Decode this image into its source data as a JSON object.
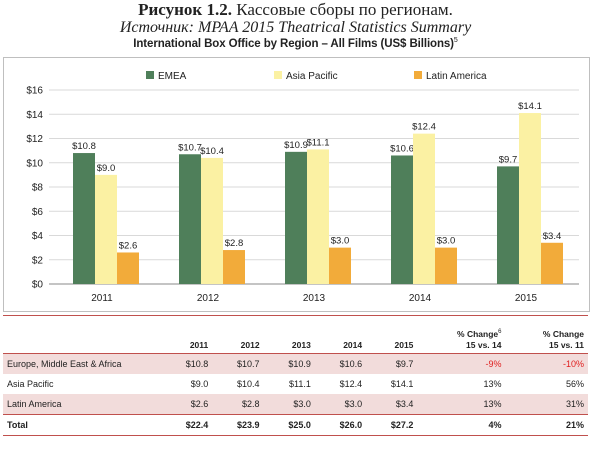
{
  "caption": {
    "label": "Рисунок 1.2.",
    "text": " Кассовые сборы по регионам.",
    "source": "Источник: MPAA 2015 Theatrical Statistics Summary"
  },
  "chart_data": {
    "type": "bar",
    "title": "International Box Office by Region – All Films (US$ Billions)",
    "title_footnote": "5",
    "categories": [
      "2011",
      "2012",
      "2013",
      "2014",
      "2015"
    ],
    "series": [
      {
        "name": "EMEA",
        "color": "#4f7f5a",
        "values": [
          10.8,
          10.7,
          10.9,
          10.6,
          9.7
        ],
        "labels": [
          "$10.8",
          "$10.7",
          "$10.9",
          "$10.6",
          "$9.7"
        ]
      },
      {
        "name": "Asia Pacific",
        "color": "#fbf1a3",
        "values": [
          9.0,
          10.4,
          11.1,
          12.4,
          14.1
        ],
        "labels": [
          "$9.0",
          "$10.4",
          "$11.1",
          "$12.4",
          "$14.1"
        ]
      },
      {
        "name": "Latin America",
        "color": "#f2ab3a",
        "values": [
          2.6,
          2.8,
          3.0,
          3.0,
          3.4
        ],
        "labels": [
          "$2.6",
          "$2.8",
          "$3.0",
          "$3.0",
          "$3.4"
        ]
      }
    ],
    "ylim": [
      0,
      16
    ],
    "yticks": [
      "$0",
      "$2",
      "$4",
      "$6",
      "$8",
      "$10",
      "$12",
      "$14",
      "$16"
    ],
    "grid": true,
    "legend_position": "top"
  },
  "table": {
    "headers": [
      "",
      "2011",
      "2012",
      "2013",
      "2014",
      "2015",
      "% Change",
      "% Change"
    ],
    "header_line2": [
      "",
      "",
      "",
      "",
      "",
      "",
      "15 vs. 14",
      "15 vs. 11"
    ],
    "header_footnote": "6",
    "rows": [
      {
        "cells": [
          "Europe, Middle East & Africa",
          "$10.8",
          "$10.7",
          "$10.9",
          "$10.6",
          "$9.7",
          "-9%",
          "-10%"
        ],
        "negative": [
          6,
          7
        ],
        "shade": true
      },
      {
        "cells": [
          "Asia Pacific",
          "$9.0",
          "$10.4",
          "$11.1",
          "$12.4",
          "$14.1",
          "13%",
          "56%"
        ],
        "negative": [],
        "shade": false
      },
      {
        "cells": [
          "Latin America",
          "$2.6",
          "$2.8",
          "$3.0",
          "$3.0",
          "$3.4",
          "13%",
          "31%"
        ],
        "negative": [],
        "shade": true
      }
    ],
    "total": [
      "Total",
      "$22.4",
      "$23.9",
      "$25.0",
      "$26.0",
      "$27.2",
      "4%",
      "21%"
    ]
  },
  "colors": {
    "accent_red": "#c0504d",
    "row_shade": "#f2dcdb",
    "negative": "#e02020"
  }
}
